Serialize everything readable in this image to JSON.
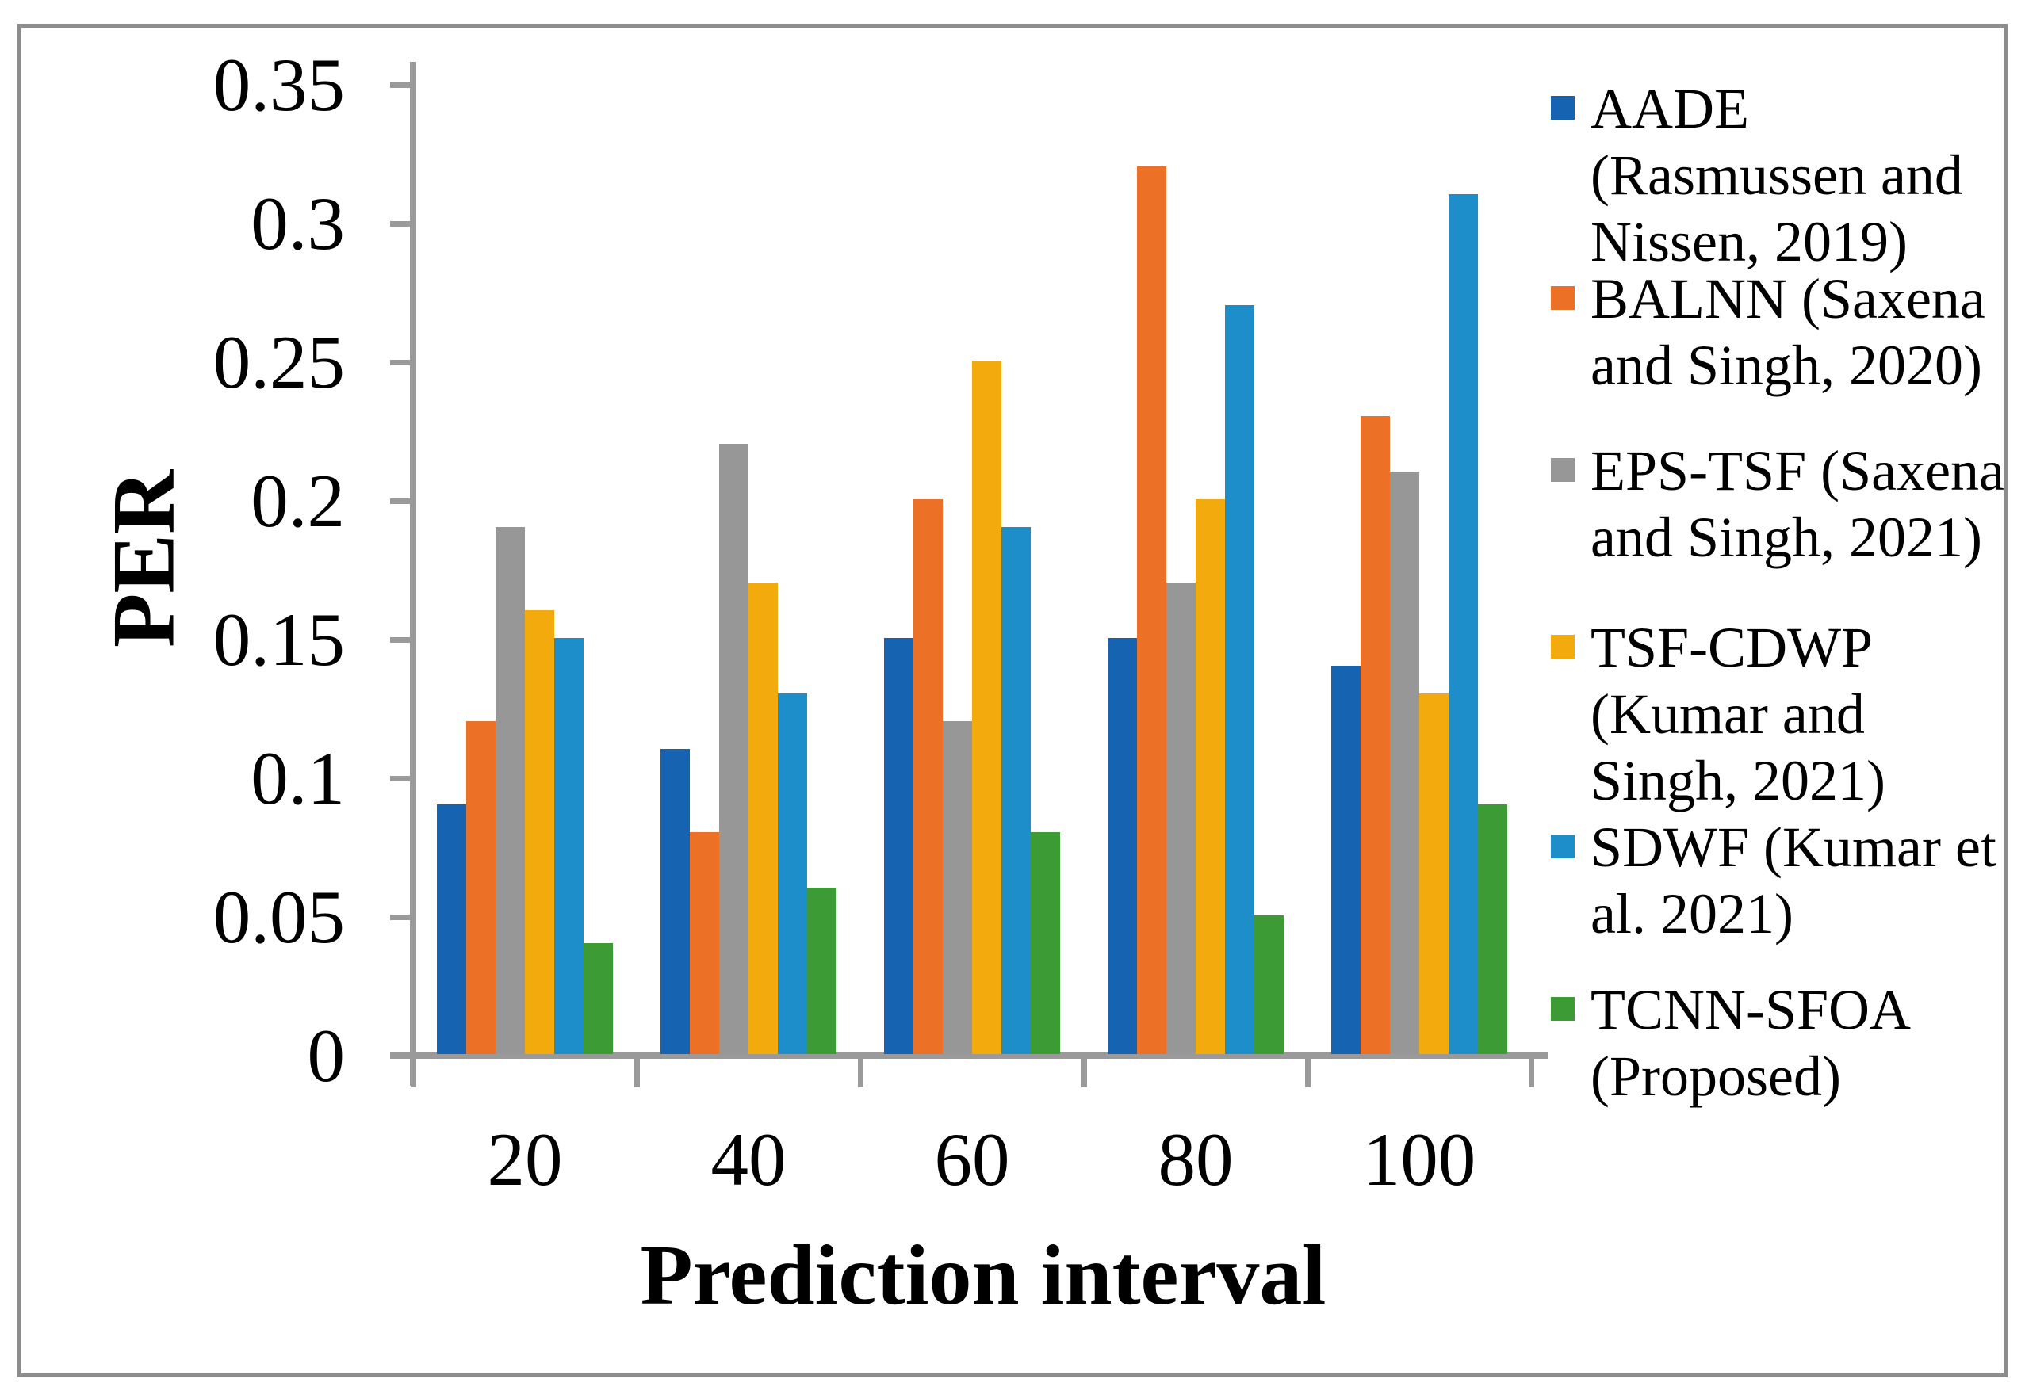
{
  "chart_data": {
    "type": "bar",
    "title": "",
    "xlabel": "Prediction interval",
    "ylabel": "PER",
    "categories": [
      "20",
      "40",
      "60",
      "80",
      "100"
    ],
    "series": [
      {
        "name": "AADE (Rasmussen and Nissen, 2019)",
        "color": "#1663B2",
        "values": [
          0.09,
          0.11,
          0.15,
          0.15,
          0.14
        ]
      },
      {
        "name": "BALNN (Saxena and Singh, 2020)",
        "color": "#EC7126",
        "values": [
          0.12,
          0.08,
          0.2,
          0.32,
          0.23
        ]
      },
      {
        "name": "EPS-TSF (Saxena and Singh, 2021)",
        "color": "#979797",
        "values": [
          0.19,
          0.22,
          0.12,
          0.17,
          0.21
        ]
      },
      {
        "name": "TSF-CDWP (Kumar and Singh, 2021)",
        "color": "#F2AA0D",
        "values": [
          0.16,
          0.17,
          0.25,
          0.2,
          0.13
        ]
      },
      {
        "name": "SDWF (Kumar et al. 2021)",
        "color": "#1D8EC9",
        "values": [
          0.15,
          0.13,
          0.19,
          0.27,
          0.31
        ]
      },
      {
        "name": "TCNN-SFOA (Proposed)",
        "color": "#3C9B35",
        "values": [
          0.04,
          0.06,
          0.08,
          0.05,
          0.09
        ]
      }
    ],
    "ylim": [
      0,
      0.35
    ],
    "yticks": [
      "0",
      "0.05",
      "0.1",
      "0.15",
      "0.2",
      "0.25",
      "0.3",
      "0.35"
    ],
    "grid": false,
    "legend_position": "right"
  },
  "legend": {
    "items": [
      {
        "lines": [
          "AADE",
          "(Rasmussen and",
          "Nissen, 2019)"
        ],
        "color": "#1663B2"
      },
      {
        "lines": [
          "BALNN (Saxena",
          "and Singh, 2020)"
        ],
        "color": "#EC7126"
      },
      {
        "lines": [
          "EPS-TSF (Saxena",
          "and Singh, 2021)"
        ],
        "color": "#979797"
      },
      {
        "lines": [
          "TSF-CDWP",
          "(Kumar and",
          "Singh, 2021)"
        ],
        "color": "#F2AA0D"
      },
      {
        "lines": [
          "SDWF (Kumar et",
          "al. 2021)"
        ],
        "color": "#1D8EC9"
      },
      {
        "lines": [
          "TCNN-SFOA",
          "(Proposed)"
        ],
        "color": "#3C9B35"
      }
    ]
  },
  "colors": {
    "axis": "#9A9A9A",
    "frame": "#8C8C8C",
    "background": "#FFFFFF",
    "text": "#000000"
  }
}
